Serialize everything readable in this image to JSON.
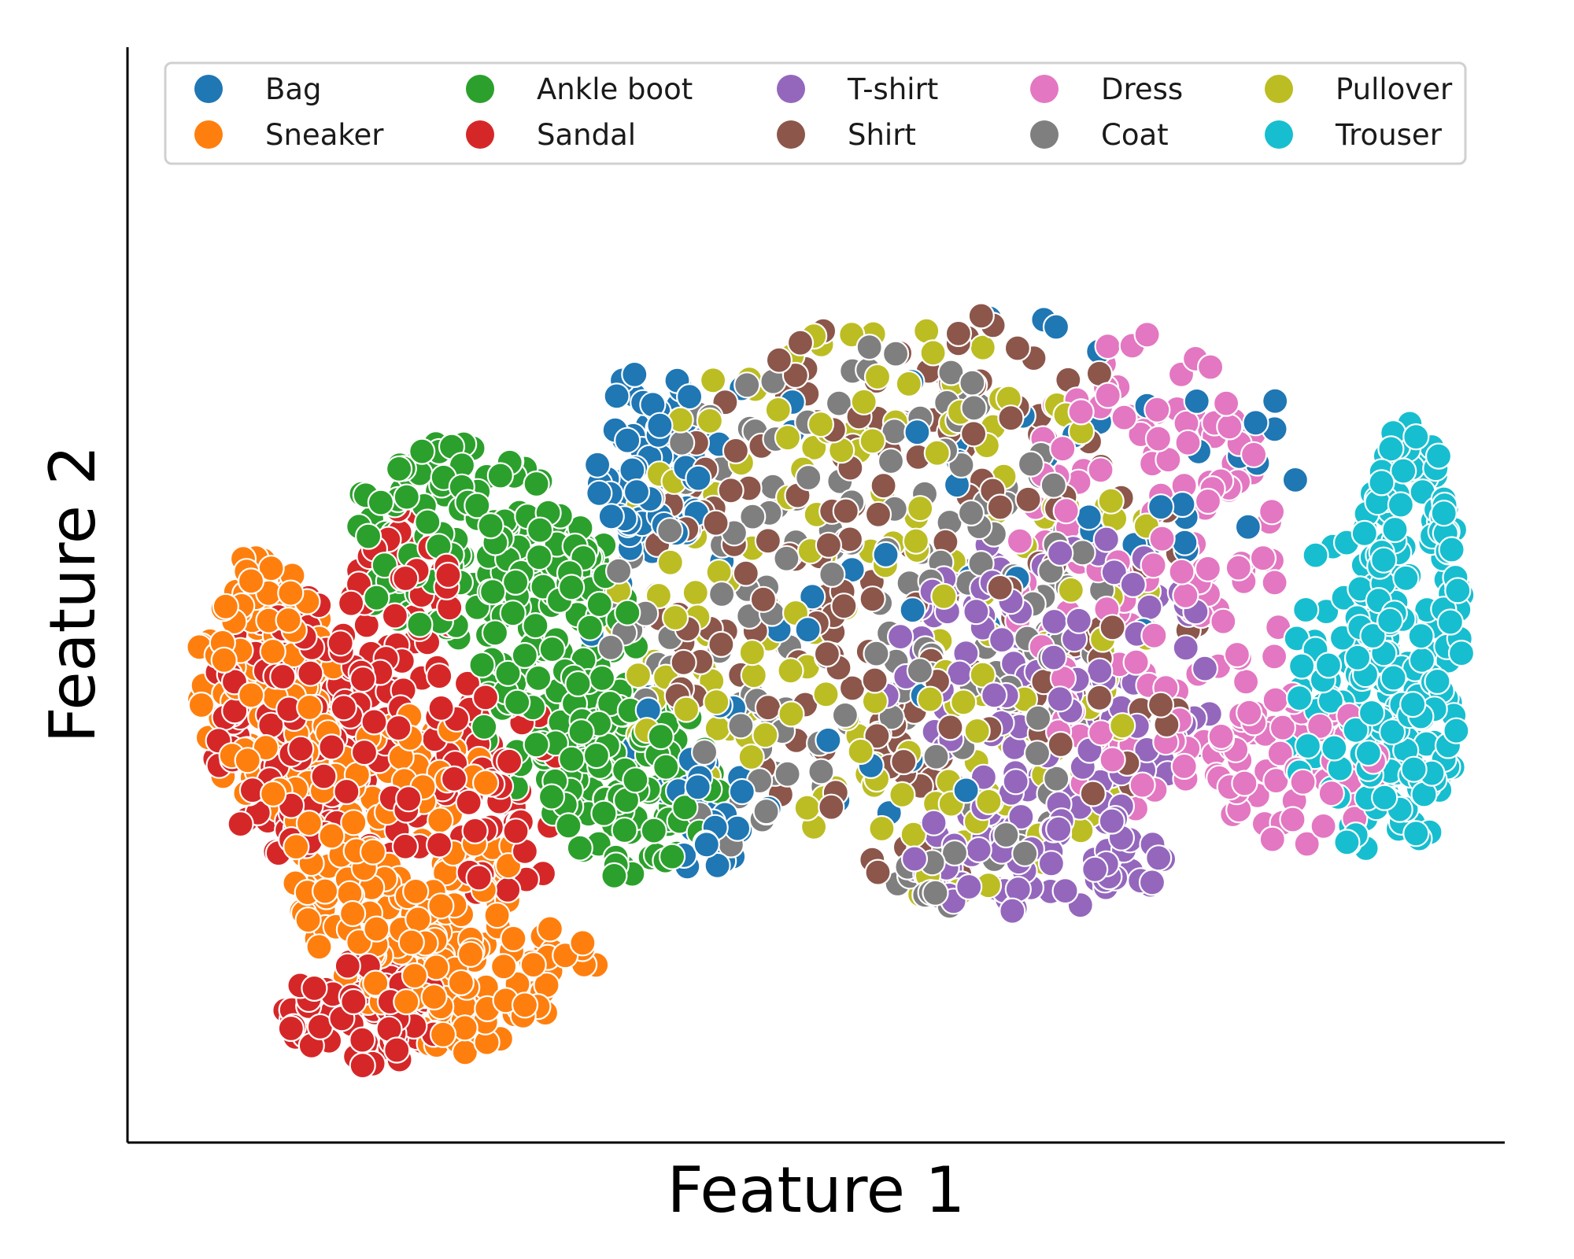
{
  "chart_data": {
    "type": "scatter",
    "title": "",
    "xlabel": "Feature 1",
    "ylabel": "Feature 2",
    "xlim": [
      0,
      100
    ],
    "ylim": [
      0,
      100
    ],
    "x_ticks": "none",
    "y_ticks": "none",
    "grid": false,
    "legend_placement": "top",
    "legend_columns": 5,
    "series": [
      {
        "name": "Bag",
        "color": "#1f77b4",
        "regions": [
          {
            "cx": 38,
            "cy": 62,
            "rx": 4,
            "ry": 9,
            "n": 70
          },
          {
            "cx": 42,
            "cy": 30,
            "rx": 3,
            "ry": 6,
            "n": 40
          },
          {
            "cx": 48,
            "cy": 44,
            "rx": 16,
            "ry": 28,
            "n": 35
          },
          {
            "cx": 63,
            "cy": 58,
            "rx": 14,
            "ry": 18,
            "n": 25
          },
          {
            "cx": 80,
            "cy": 62,
            "rx": 8,
            "ry": 10,
            "n": 15
          }
        ]
      },
      {
        "name": "Sneaker",
        "color": "#ff7f0e",
        "regions": [
          {
            "cx": 10,
            "cy": 42,
            "rx": 5,
            "ry": 12,
            "n": 120
          },
          {
            "cx": 20,
            "cy": 26,
            "rx": 8,
            "ry": 13,
            "n": 170
          },
          {
            "cx": 27,
            "cy": 14,
            "rx": 10,
            "ry": 6,
            "n": 80
          }
        ]
      },
      {
        "name": "Ankle boot",
        "color": "#2ca02c",
        "regions": [
          {
            "cx": 24,
            "cy": 55,
            "rx": 8,
            "ry": 9,
            "n": 120
          },
          {
            "cx": 31,
            "cy": 44,
            "rx": 6,
            "ry": 14,
            "n": 160
          },
          {
            "cx": 37,
            "cy": 33,
            "rx": 6,
            "ry": 9,
            "n": 90
          }
        ]
      },
      {
        "name": "Sandal",
        "color": "#d62728",
        "regions": [
          {
            "cx": 12,
            "cy": 38,
            "rx": 6,
            "ry": 12,
            "n": 140
          },
          {
            "cx": 20,
            "cy": 40,
            "rx": 5,
            "ry": 18,
            "n": 110
          },
          {
            "cx": 17,
            "cy": 12,
            "rx": 6,
            "ry": 5,
            "n": 70
          },
          {
            "cx": 27,
            "cy": 32,
            "rx": 5,
            "ry": 10,
            "n": 50
          }
        ]
      },
      {
        "name": "T-shirt",
        "color": "#9467bd",
        "regions": [
          {
            "cx": 67,
            "cy": 42,
            "rx": 12,
            "ry": 14,
            "n": 130
          },
          {
            "cx": 66,
            "cy": 26,
            "rx": 10,
            "ry": 5,
            "n": 80
          }
        ]
      },
      {
        "name": "Shirt",
        "color": "#8c564b",
        "regions": [
          {
            "cx": 58,
            "cy": 50,
            "rx": 20,
            "ry": 26,
            "n": 210
          }
        ]
      },
      {
        "name": "Dress",
        "color": "#e377c2",
        "regions": [
          {
            "cx": 74,
            "cy": 52,
            "rx": 10,
            "ry": 22,
            "n": 170
          },
          {
            "cx": 85,
            "cy": 34,
            "rx": 6,
            "ry": 7,
            "n": 60
          }
        ]
      },
      {
        "name": "Coat",
        "color": "#7f7f7f",
        "regions": [
          {
            "cx": 53,
            "cy": 46,
            "rx": 18,
            "ry": 27,
            "n": 200
          }
        ]
      },
      {
        "name": "Pullover",
        "color": "#bcbd22",
        "regions": [
          {
            "cx": 55,
            "cy": 48,
            "rx": 20,
            "ry": 28,
            "n": 200
          }
        ]
      },
      {
        "name": "Trouser",
        "color": "#17becf",
        "regions": [
          {
            "cx": 93,
            "cy": 46,
            "rx": 4,
            "ry": 20,
            "n": 220
          },
          {
            "cx": 88,
            "cy": 40,
            "rx": 4,
            "ry": 16,
            "n": 70
          }
        ]
      }
    ]
  }
}
